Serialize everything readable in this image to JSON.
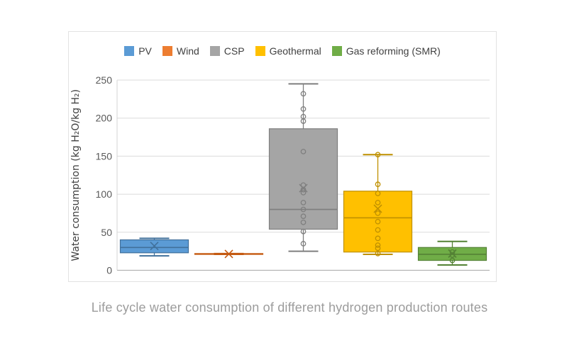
{
  "page": {
    "caption": "Life cycle water consumption of different hydrogen production routes"
  },
  "chart_data": {
    "type": "boxplot",
    "title": "",
    "xlabel": "",
    "ylabel": "Water consumption (kg H₂O/kg H₂)",
    "ylim": [
      0,
      250
    ],
    "yticks": [
      0,
      50,
      100,
      150,
      200,
      250
    ],
    "grid": true,
    "legend_position": "top",
    "categories": [
      "PV",
      "Wind",
      "CSP",
      "Geothermal",
      "Gas reforming (SMR)"
    ],
    "series": [
      {
        "name": "PV",
        "color": "#5B9BD5",
        "stroke": "#41719C",
        "min": 19,
        "q1": 23,
        "median": 30,
        "q3": 40,
        "max": 42,
        "mean": 32,
        "points": []
      },
      {
        "name": "Wind",
        "color": "#ED7D31",
        "stroke": "#C55A11",
        "min": 21,
        "q1": 21,
        "median": 21.5,
        "q3": 22,
        "max": 22,
        "mean": 21.5,
        "points": []
      },
      {
        "name": "CSP",
        "color": "#A5A5A5",
        "stroke": "#7F7F7F",
        "min": 25,
        "q1": 54,
        "median": 80,
        "q3": 186,
        "max": 245,
        "mean": 108,
        "points": [
          232,
          212,
          202,
          196,
          156,
          112,
          106,
          102,
          89,
          80,
          71,
          63,
          51,
          35
        ]
      },
      {
        "name": "Geothermal",
        "color": "#FFC000",
        "stroke": "#BF9000",
        "min": 21,
        "q1": 24,
        "median": 69,
        "q3": 104,
        "max": 152,
        "mean": 81,
        "points": [
          152,
          113,
          101,
          89,
          75,
          64,
          53,
          42,
          33,
          29,
          22
        ]
      },
      {
        "name": "Gas reforming (SMR)",
        "color": "#70AD47",
        "stroke": "#548235",
        "min": 7,
        "q1": 13,
        "median": 21,
        "q3": 30,
        "max": 38,
        "mean": 22,
        "points": [
          24,
          20,
          13
        ]
      }
    ],
    "style": {
      "gridline_color": "#dbdbdb",
      "axis_color": "#b3b3b3",
      "tick_label_color": "#595959",
      "axis_title_color": "#404040"
    }
  }
}
